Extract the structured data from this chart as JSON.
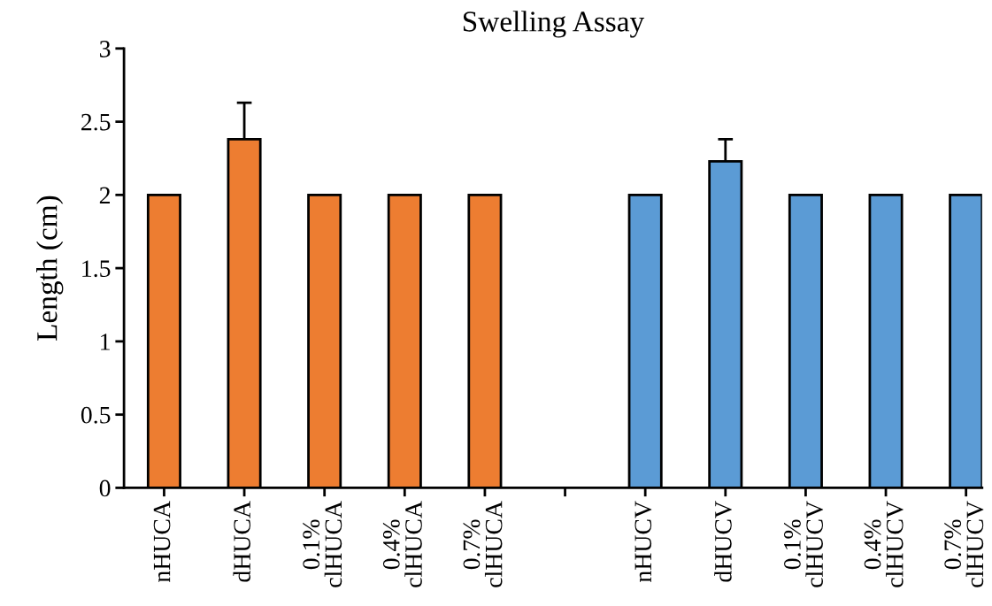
{
  "chart_data": {
    "type": "bar",
    "title": "Swelling Assay",
    "ylabel": "Length (cm)",
    "categories": [
      "nHUCA",
      "dHUCA",
      "0.1%\nclHUCA",
      "0.4%\nclHUCA",
      "0.7%\nclHUCA",
      null,
      "nHUCV",
      "dHUCV",
      "0.1%\nclHUCV",
      "0.4%\nclHUCV",
      "0.7%\nclHUCV"
    ],
    "values": [
      2,
      2.38,
      2,
      2,
      2,
      null,
      2,
      2.23,
      2,
      2,
      2
    ],
    "colors": [
      "#ed7d31",
      "#ed7d31",
      "#ed7d31",
      "#ed7d31",
      "#ed7d31",
      null,
      "#5b9bd5",
      "#5b9bd5",
      "#5b9bd5",
      "#5b9bd5",
      "#5b9bd5"
    ],
    "errors": [
      null,
      0.25,
      null,
      null,
      null,
      null,
      null,
      0.15,
      null,
      null,
      null
    ],
    "ylim": [
      0,
      3
    ],
    "yticks": [
      0,
      0.5,
      1,
      1.5,
      2,
      2.5,
      3
    ],
    "grid": false,
    "legend": false
  }
}
